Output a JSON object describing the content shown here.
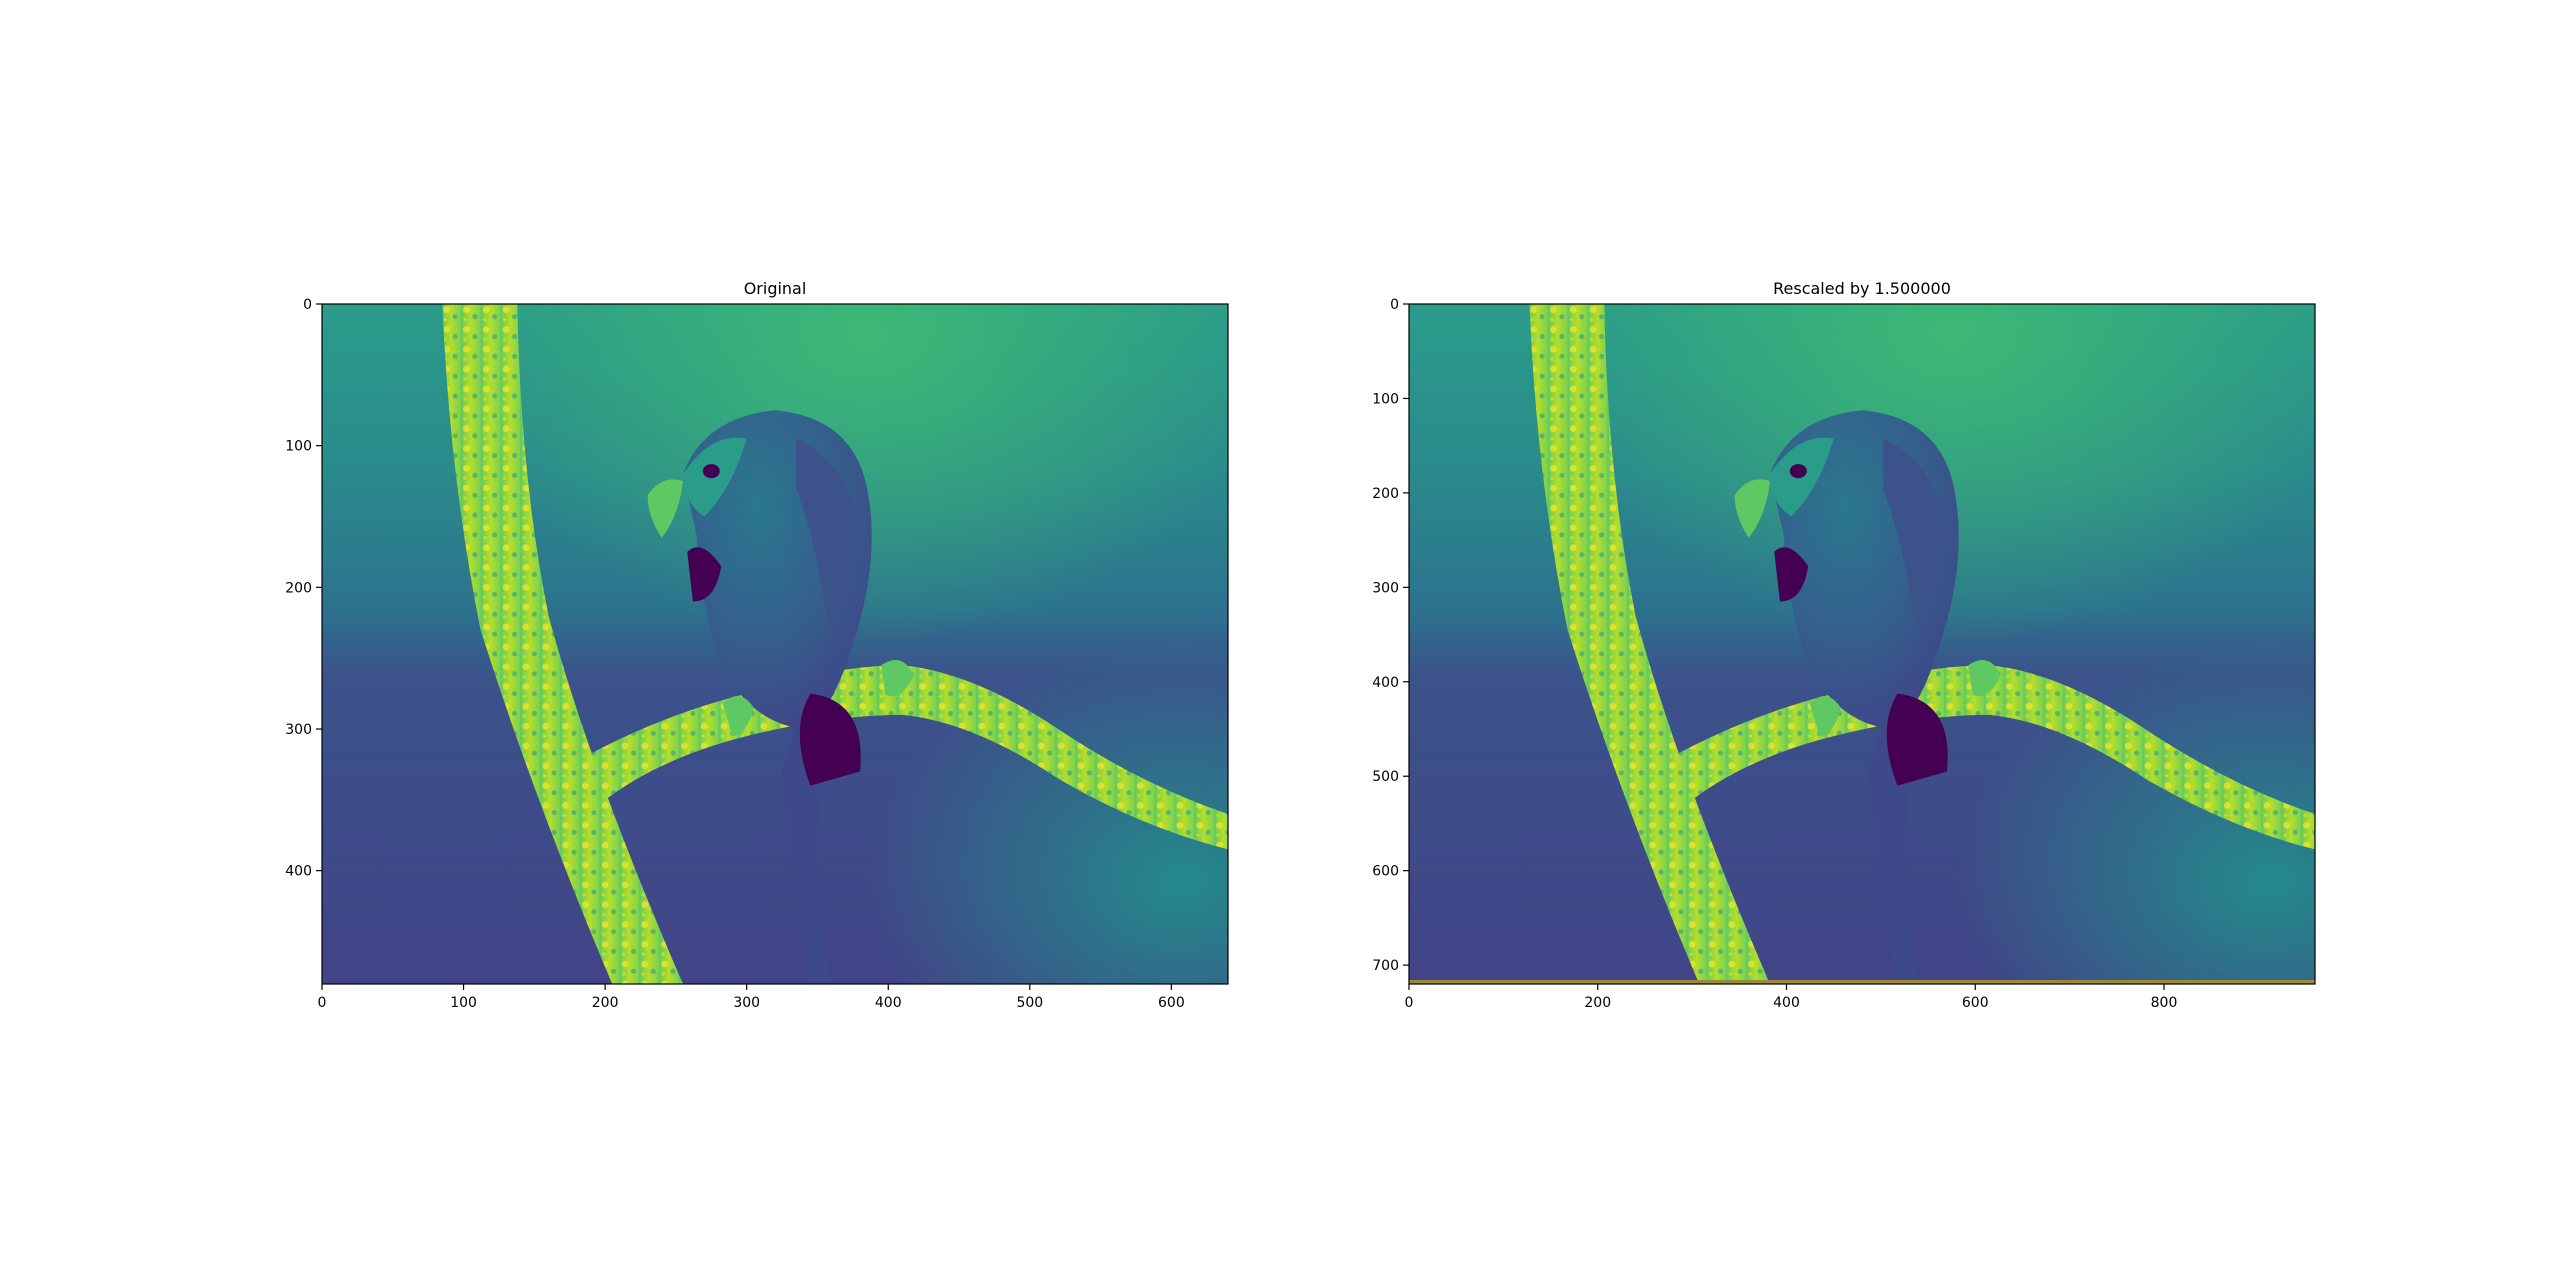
{
  "figure": {
    "panels": [
      {
        "id": "original",
        "title": "Original",
        "xticks": [
          "0",
          "100",
          "200",
          "300",
          "400",
          "500",
          "600"
        ],
        "yticks": [
          "0",
          "100",
          "200",
          "300",
          "400"
        ],
        "xlim": [
          0,
          640
        ],
        "ylim": [
          480,
          0
        ]
      },
      {
        "id": "rescaled",
        "title": "Rescaled by 1.500000",
        "xticks": [
          "0",
          "200",
          "400",
          "600",
          "800"
        ],
        "yticks": [
          "0",
          "100",
          "200",
          "300",
          "400",
          "500",
          "600",
          "700"
        ],
        "xlim": [
          0,
          960
        ],
        "ylim": [
          720,
          0
        ]
      }
    ],
    "colormap": "viridis",
    "colors": {
      "dark": "#440154",
      "navy": "#3b4a8a",
      "teal": "#26828e",
      "green": "#35b779",
      "yellow": "#fde725"
    }
  }
}
